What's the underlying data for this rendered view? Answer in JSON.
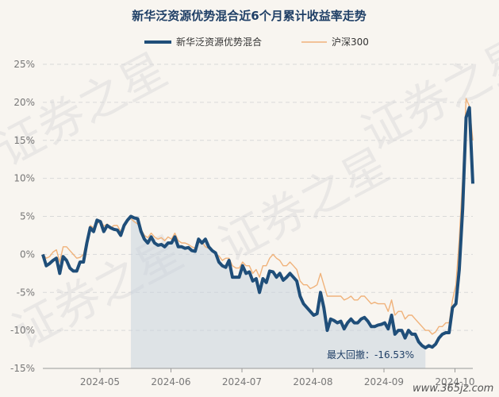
{
  "chart_data": {
    "type": "line",
    "title": "新华泛资源优势混合近6个月累计收益率走势",
    "ylim": [
      -15,
      25
    ],
    "y_ticks": [
      "25%",
      "20%",
      "15%",
      "10%",
      "5%",
      "0%",
      "-5%",
      "-10%",
      "-15%"
    ],
    "y_tick_values": [
      25,
      20,
      15,
      10,
      5,
      0,
      -5,
      -10,
      -15
    ],
    "x_ticks": [
      "2024-05",
      "2024-06",
      "2024-07",
      "2024-08",
      "2024-09",
      "2024-10"
    ],
    "legend_position": "top",
    "grid": true,
    "series": [
      {
        "name": "新华泛资源优势混合",
        "color": "#1f4e79",
        "values": [
          0,
          -1.5,
          -1.2,
          -0.8,
          -0.5,
          -2.5,
          -0.3,
          -0.8,
          -1.8,
          -2.2,
          -2.2,
          -1.0,
          -1.0,
          1.5,
          3.5,
          3.0,
          4.5,
          4.3,
          3.0,
          3.8,
          3.5,
          3.3,
          3.2,
          2.5,
          3.8,
          4.5,
          5.0,
          4.8,
          4.7,
          3.0,
          2.0,
          1.5,
          2.3,
          1.5,
          1.2,
          1.3,
          1.0,
          1.5,
          1.5,
          2.3,
          1.0,
          1.0,
          0.8,
          0.9,
          0.5,
          0.4,
          2.0,
          1.5,
          2.0,
          1.0,
          0.5,
          0.2,
          -1.0,
          -1.5,
          -1.7,
          -0.8,
          -3.0,
          -3.0,
          -3.0,
          -1.5,
          -2.5,
          -2.3,
          -3.5,
          -3.2,
          -5.0,
          -3.2,
          -3.7,
          -2.2,
          -2.3,
          -3.0,
          -2.5,
          -3.4,
          -3.0,
          -2.5,
          -3.0,
          -3.5,
          -5.5,
          -6.5,
          -7.0,
          -7.5,
          -8.0,
          -7.8,
          -5.0,
          -7.0,
          -10.0,
          -8.5,
          -8.7,
          -9.0,
          -8.8,
          -9.8,
          -9.0,
          -8.5,
          -9.0,
          -9.0,
          -8.5,
          -8.3,
          -8.8,
          -9.5,
          -9.5,
          -9.3,
          -9.2,
          -9.0,
          -9.8,
          -8.0,
          -10.5,
          -10.0,
          -10.0,
          -11.0,
          -10.0,
          -10.5,
          -10.5,
          -11.5,
          -12.0,
          -12.3,
          -12.0,
          -12.2,
          -11.8,
          -11.0,
          -10.5,
          -10.3,
          -10.3,
          -7.0,
          -6.5,
          -2.0,
          6.0,
          18.0,
          19.3,
          9.3
        ]
      },
      {
        "name": "沪深300",
        "color": "#f0b27a",
        "values": [
          0,
          -0.5,
          -0.3,
          0.3,
          0.6,
          -1.0,
          1.0,
          1.0,
          0.5,
          0.0,
          -0.5,
          -0.4,
          0.0,
          2.0,
          3.8,
          3.5,
          4.0,
          4.5,
          3.7,
          4.0,
          3.5,
          3.8,
          3.8,
          3.0,
          3.8,
          4.5,
          4.7,
          4.3,
          4.0,
          3.3,
          2.5,
          2.2,
          2.8,
          2.3,
          2.0,
          2.2,
          1.8,
          2.3,
          2.0,
          2.8,
          1.8,
          1.5,
          1.5,
          1.3,
          1.0,
          0.8,
          1.5,
          1.6,
          1.0,
          0.8,
          0.5,
          0.0,
          -0.2,
          -0.8,
          -0.5,
          -0.5,
          -1.5,
          -1.8,
          -1.8,
          -1.0,
          -1.5,
          -1.5,
          -2.5,
          -2.0,
          -3.0,
          -1.5,
          -1.5,
          -0.5,
          0.0,
          -0.5,
          -0.8,
          -1.5,
          -1.5,
          -1.0,
          -1.5,
          -2.0,
          -3.5,
          -4.0,
          -4.0,
          -4.5,
          -4.3,
          -4.0,
          -2.5,
          -4.0,
          -5.5,
          -5.5,
          -5.5,
          -5.5,
          -5.5,
          -6.0,
          -5.8,
          -5.5,
          -6.0,
          -6.0,
          -5.5,
          -5.5,
          -6.0,
          -6.5,
          -6.3,
          -6.5,
          -6.5,
          -6.5,
          -7.5,
          -6.0,
          -8.0,
          -7.5,
          -7.5,
          -8.5,
          -8.0,
          -8.0,
          -8.5,
          -9.0,
          -9.5,
          -10.0,
          -10.0,
          -10.5,
          -10.2,
          -9.5,
          -9.5,
          -9.0,
          -9.0,
          -6.0,
          -4.0,
          2.0,
          10.0,
          20.5,
          19.5,
          15.0
        ]
      }
    ],
    "annotation": "最大回撤：-16.53%",
    "drawdown_start_index": 26,
    "drawdown_end_index": 113
  },
  "watermark": "证券之星",
  "site": "www.365jz.com"
}
